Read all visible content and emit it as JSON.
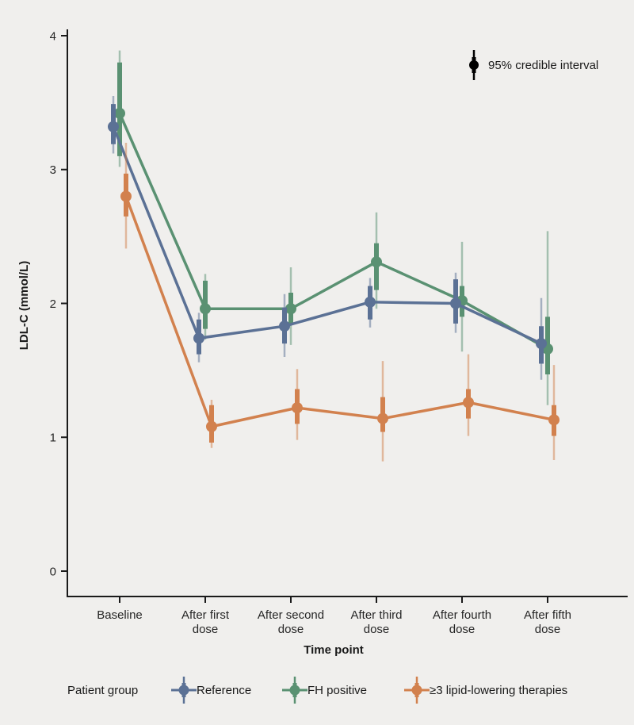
{
  "page": {
    "background_color": "#f0efed",
    "axis_color": "#1a1a1a",
    "text_color": "#262626"
  },
  "chart_data": {
    "type": "line",
    "title": "",
    "xlabel": "Time point",
    "ylabel": "LDL-C (mmol/L)",
    "ylim": [
      0,
      4
    ],
    "yticks": [
      0,
      1,
      2,
      3,
      4
    ],
    "grid": false,
    "categories": [
      "Baseline",
      "After first dose",
      "After second dose",
      "After third dose",
      "After fourth dose",
      "After fifth dose"
    ],
    "category_label_lines": [
      [
        "Baseline"
      ],
      [
        "After first",
        "dose"
      ],
      [
        "After second",
        "dose"
      ],
      [
        "After third",
        "dose"
      ],
      [
        "After fourth",
        "dose"
      ],
      [
        "After fifth",
        "dose"
      ]
    ],
    "ci_note": "95% credible interval",
    "ci_note_color": "#000000",
    "legend_title": "Patient group",
    "legend_position": "bottom",
    "series": [
      {
        "name": "Reference",
        "color": "#5b7195",
        "values": [
          3.32,
          1.74,
          1.83,
          2.01,
          2.0,
          1.7
        ],
        "ci95": {
          "low": [
            3.12,
            1.56,
            1.6,
            1.82,
            1.78,
            1.43
          ],
          "high": [
            3.55,
            1.93,
            2.07,
            2.19,
            2.23,
            2.04
          ]
        },
        "ci50": {
          "low": [
            3.19,
            1.62,
            1.7,
            1.88,
            1.85,
            1.55
          ],
          "high": [
            3.49,
            1.88,
            1.97,
            2.13,
            2.18,
            1.83
          ]
        }
      },
      {
        "name": "FH positive",
        "color": "#5a9172",
        "values": [
          3.42,
          1.96,
          1.96,
          2.31,
          2.02,
          1.66
        ],
        "ci95": {
          "low": [
            3.02,
            1.73,
            1.69,
            1.96,
            1.64,
            1.24
          ],
          "high": [
            3.89,
            2.22,
            2.27,
            2.68,
            2.46,
            2.54
          ]
        },
        "ci50": {
          "low": [
            3.1,
            1.81,
            1.85,
            2.1,
            1.9,
            1.47
          ],
          "high": [
            3.8,
            2.17,
            2.08,
            2.45,
            2.13,
            1.9
          ]
        }
      },
      {
        "name": "≥3 lipid-lowering therapies",
        "color": "#d2814e",
        "values": [
          2.8,
          1.08,
          1.22,
          1.14,
          1.26,
          1.13
        ],
        "ci95": {
          "low": [
            2.41,
            0.92,
            0.98,
            0.82,
            1.01,
            0.83
          ],
          "high": [
            3.2,
            1.28,
            1.51,
            1.57,
            1.62,
            1.54
          ]
        },
        "ci50": {
          "low": [
            2.65,
            0.96,
            1.1,
            1.04,
            1.14,
            1.01
          ],
          "high": [
            2.97,
            1.24,
            1.36,
            1.3,
            1.36,
            1.24
          ]
        }
      }
    ]
  }
}
